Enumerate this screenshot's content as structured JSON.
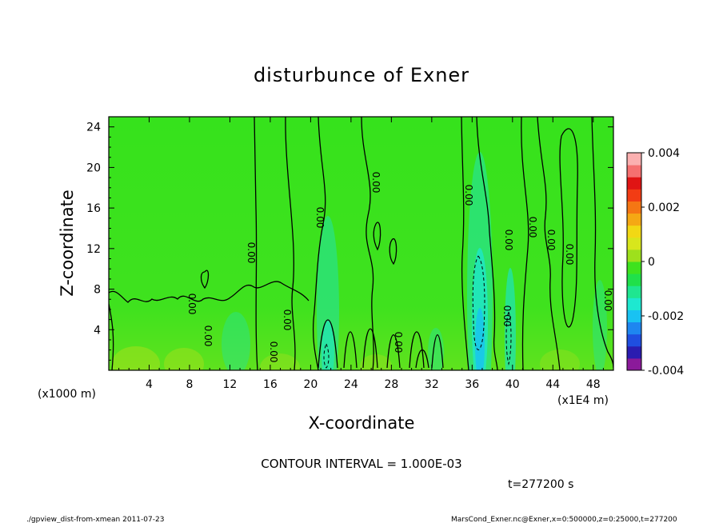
{
  "chart_data": {
    "type": "heatmap",
    "title": "disturbunce of Exner",
    "xlabel": "X-coordinate",
    "ylabel": "Z-coordinate",
    "x_unit_label": "(x1E4 m)",
    "y_unit_label": "(x1000 m)",
    "xlim": [
      0,
      50
    ],
    "ylim": [
      0,
      25
    ],
    "x_ticks": [
      4,
      8,
      12,
      16,
      20,
      24,
      28,
      32,
      36,
      40,
      44,
      48
    ],
    "y_ticks": [
      4,
      8,
      12,
      16,
      20,
      24
    ],
    "colorbar": {
      "min": -0.004,
      "max": 0.004,
      "tick_values": [
        0.004,
        0.002,
        0,
        -0.002,
        -0.004
      ],
      "tick_labels": [
        "0.004",
        "0.002",
        "0",
        "-0.002",
        "-0.004"
      ],
      "colors": [
        "#8b1a9a",
        "#2a1cb0",
        "#1f4ee0",
        "#1e86f0",
        "#19c2f2",
        "#1ee8d0",
        "#1fe690",
        "#20e04a",
        "#3ee21e",
        "#9ee01c",
        "#d8e61c",
        "#f2d814",
        "#f5a814",
        "#f57614",
        "#f23c14",
        "#e01414",
        "#f57070",
        "#fbb0b0"
      ]
    },
    "contour_labels": [
      "0.00",
      "0.00",
      "0.00",
      "0.00",
      "0.00",
      "0.00",
      "0.00",
      "0.00",
      "0.00",
      "0.00",
      "0.00",
      "0.00",
      "0.00",
      "0.00",
      "0.00"
    ],
    "contour_interval_text": "CONTOUR INTERVAL = 1.000E-03",
    "time_text": "t=277200 s"
  },
  "footer": {
    "left": "./gpview_dist-from-xmean  2011-07-23",
    "right": "MarsCond_Exner.nc@Exner,x=0:500000,z=0:25000,t=277200"
  }
}
